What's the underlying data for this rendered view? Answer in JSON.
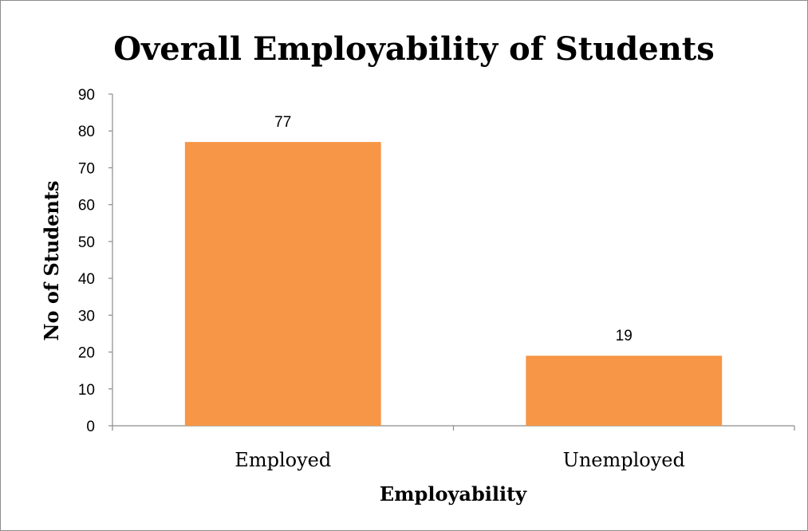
{
  "chart_data": {
    "type": "bar",
    "title": "Overall Employability of Students",
    "xlabel": "Employability",
    "ylabel": "No of Students",
    "categories": [
      "Employed",
      "Unemployed"
    ],
    "values": [
      77,
      19
    ],
    "data_labels": [
      "77",
      "19"
    ],
    "ylim": [
      0,
      90
    ],
    "yticks": [
      0,
      10,
      20,
      30,
      40,
      50,
      60,
      70,
      80,
      90
    ],
    "grid": false,
    "legend": "none",
    "bar_color": "#f79646"
  }
}
